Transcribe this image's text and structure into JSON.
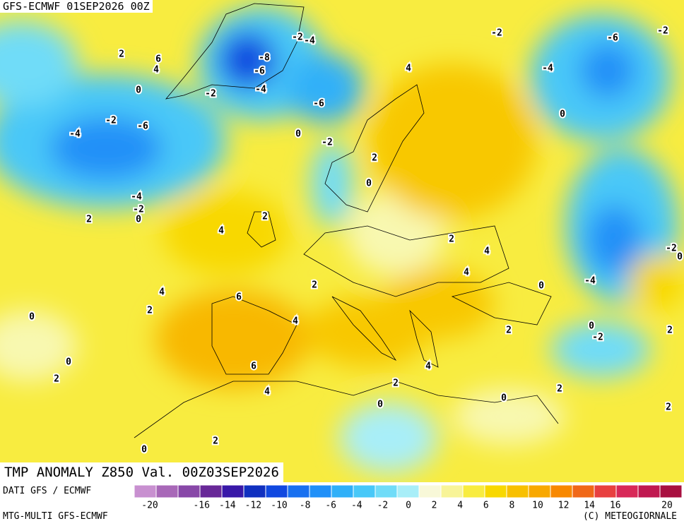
{
  "header": {
    "run": "GFS-ECMWF 01SEP2026 00Z",
    "title": "TMP ANOMALY Z850 Val. 00Z03SEP2026"
  },
  "footer": {
    "source": "DATI GFS / ECMWF",
    "model": "MTG-MULTI GFS-ECMWF",
    "copyright": "(C) METEOGIORNALE"
  },
  "colorbar": {
    "colors": [
      "#c890d0",
      "#a868b8",
      "#8848a8",
      "#682898",
      "#3818a8",
      "#1030c0",
      "#1048e0",
      "#1870f0",
      "#2090f8",
      "#30b0f8",
      "#48c8f8",
      "#70dcf8",
      "#a8eef8",
      "#f8f8d8",
      "#f8f498",
      "#f8ec40",
      "#f8d800",
      "#f8c000",
      "#f8a800",
      "#f88800",
      "#f06818",
      "#e84040",
      "#d82858",
      "#c01850",
      "#a81040"
    ],
    "labels": [
      -20,
      -16,
      -14,
      -12,
      -10,
      -8,
      -6,
      -4,
      -2,
      0,
      2,
      4,
      6,
      8,
      10,
      12,
      14,
      16,
      20
    ]
  },
  "contour_labels": [
    2,
    6,
    4,
    0,
    -2,
    -4,
    -6,
    -2,
    -8,
    -6,
    -4,
    -2,
    -4,
    -6,
    0,
    -2,
    4,
    -2,
    -6,
    -2,
    -4,
    0,
    2,
    0,
    -4,
    -2,
    0,
    2,
    4,
    2,
    2,
    4,
    4,
    -2,
    0,
    0,
    -4,
    2,
    4,
    2,
    6,
    4,
    0,
    2,
    0,
    -2,
    2,
    0,
    6,
    4,
    2,
    2,
    4,
    2,
    0,
    0,
    2,
    2,
    0
  ]
}
